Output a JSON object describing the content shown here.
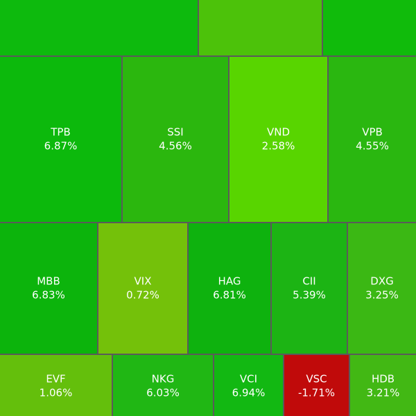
{
  "chart_data": {
    "type": "treemap",
    "categories": [
      "TPB",
      "SSI",
      "VND",
      "VPB",
      "MBB",
      "VIX",
      "HAG",
      "CII",
      "DXG",
      "EVF",
      "NKG",
      "VCI",
      "VSC",
      "HDB"
    ],
    "values": [
      6.87,
      4.56,
      2.58,
      4.55,
      6.83,
      0.72,
      6.81,
      5.39,
      3.25,
      1.06,
      6.03,
      6.94,
      -1.71,
      3.21
    ],
    "value_labels": [
      "6.87%",
      "4.56%",
      "2.58%",
      "4.55%",
      "6.83%",
      "0.72%",
      "6.81%",
      "5.39%",
      "3.25%",
      "1.06%",
      "6.03%",
      "6.94%",
      "-1.71%",
      "3.21%"
    ],
    "colors": [
      "#0cb90c",
      "#2bb70e",
      "#58d500",
      "#2ab710",
      "#0cb40c",
      "#74c10a",
      "#0eb20e",
      "#1cb414",
      "#3bb814",
      "#64bf0c",
      "#20b714",
      "#12b812",
      "#c00a0a",
      "#42b814"
    ]
  }
}
